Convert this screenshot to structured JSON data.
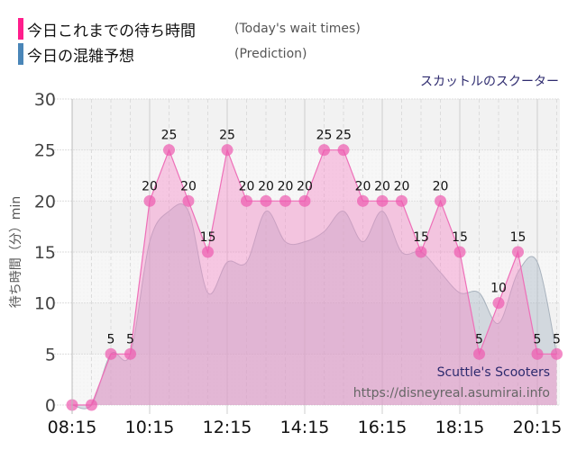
{
  "legend": {
    "items": [
      {
        "label": "今日これまでの待ち時間",
        "sub": "(Today's wait times)",
        "color": "#ff1e8c"
      },
      {
        "label": "今日の混雑予想",
        "sub": "(Prediction)",
        "color": "#4a86b8"
      }
    ]
  },
  "attraction_name": "スカットルのスクーター",
  "watermark": {
    "name_en": "Scuttle's Scooters",
    "url": "https://disneyreal.asumirai.info"
  },
  "chart_data": {
    "type": "area",
    "title": "スカットルのスクーター",
    "xlabel": "",
    "ylabel": "待ち時間（分）min",
    "ylim": [
      0,
      30
    ],
    "yticks": [
      0,
      5,
      10,
      15,
      20,
      25,
      30
    ],
    "xtick_labels": [
      "08:15",
      "10:15",
      "12:15",
      "14:15",
      "16:15",
      "18:15",
      "20:15"
    ],
    "grid": true,
    "legend_position": "top-left",
    "x": [
      "08:15",
      "08:45",
      "09:15",
      "09:45",
      "10:15",
      "10:45",
      "11:15",
      "11:45",
      "12:15",
      "12:45",
      "13:15",
      "13:45",
      "14:15",
      "14:45",
      "15:15",
      "15:45",
      "16:15",
      "16:45",
      "17:15",
      "17:45",
      "18:15",
      "18:45",
      "19:15",
      "19:45",
      "20:15",
      "20:45"
    ],
    "series": [
      {
        "name": "今日これまでの待ち時間 (Today's wait times)",
        "color": "#f06bb4",
        "values": [
          0,
          0,
          5,
          5,
          20,
          25,
          20,
          15,
          25,
          20,
          20,
          20,
          20,
          25,
          25,
          20,
          20,
          20,
          15,
          20,
          15,
          5,
          10,
          15,
          5,
          5
        ]
      },
      {
        "name": "今日の混雑予想 (Prediction)",
        "color": "#b8c4cc",
        "values": [
          0,
          0,
          5,
          5,
          16,
          19,
          19,
          11,
          14,
          14,
          19,
          16,
          16,
          17,
          19,
          16,
          19,
          15,
          15,
          13,
          11,
          11,
          8,
          13,
          14,
          5
        ]
      }
    ]
  }
}
